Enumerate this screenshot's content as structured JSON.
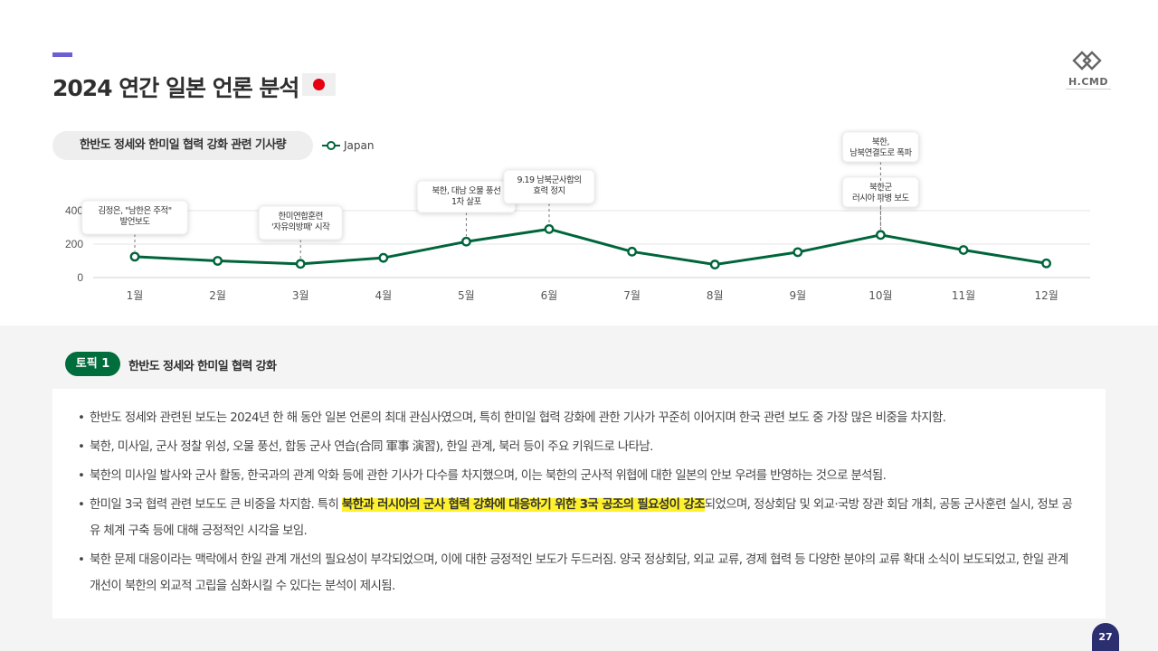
{
  "header": {
    "title": "2024 연간 일본 언론 분석",
    "flag_icon": "japan-flag-icon",
    "logo_text": "H.CMD"
  },
  "chart_section": {
    "title": "한반도 정세와 한미일 협력 강화 관련 기사량"
  },
  "chart_data": {
    "type": "line",
    "categories": [
      "1월",
      "2월",
      "3월",
      "4월",
      "5월",
      "6월",
      "7월",
      "8월",
      "9월",
      "10월",
      "11월",
      "12월"
    ],
    "series": [
      {
        "name": "Japan",
        "color": "#00653a",
        "values": [
          125,
          100,
          82,
          118,
          215,
          290,
          155,
          78,
          152,
          255,
          165,
          85
        ]
      }
    ],
    "yticks": [
      0,
      200,
      400
    ],
    "ylim": [
      0,
      400
    ],
    "grid": true,
    "legend": "top-left",
    "annotations": [
      {
        "month_index": 0,
        "lines": [
          "김정은, \"남한은 주적\"",
          "발언보도"
        ]
      },
      {
        "month_index": 2,
        "lines": [
          "한미연합훈련",
          "'자유의방패' 시작"
        ]
      },
      {
        "month_index": 4,
        "lines": [
          "북한, 대남 오물 풍선",
          "1차 살포"
        ]
      },
      {
        "month_index": 5,
        "lines": [
          "9.19 남북군사합의",
          "효력 정지"
        ]
      },
      {
        "month_index": 9,
        "lines": [
          "북한군",
          "러시아 파병 보도"
        ]
      },
      {
        "month_index": 9,
        "lines": [
          "북한,",
          "남북연결도로 폭파"
        ]
      }
    ]
  },
  "topic": {
    "badge": "토픽 1",
    "title": "한반도 정세와 한미일 협력 강화"
  },
  "bullets": {
    "b1": "한반도 정세와 관련된 보도는 2024년 한 해 동안 일본 언론의 최대 관심사였으며, 특히 한미일 협력 강화에 관한 기사가 꾸준히 이어지며 한국 관련 보도 중 가장 많은 비중을 차지함.",
    "b2": "북한, 미사일, 군사 정찰 위성, 오물 풍선, 합동 군사 연습(合同 軍事 演習), 한일 관계, 북러 등이 주요 키워드로 나타남.",
    "b3": "북한의 미사일 발사와 군사 활동, 한국과의 관계 악화 등에 관한 기사가 다수를 차지했으며, 이는 북한의 군사적 위협에 대한 일본의 안보 우려를 반영하는 것으로 분석됨.",
    "b4_pre": "한미일 3국 협력 관련 보도도 큰 비중을 차지함. 특히 ",
    "b4_highlight": "북한과 러시아의 군사 협력 강화에 대응하기 위한 3국 공조의 필요성이 강조",
    "b4_post": "되었으며, 정상회담 및 외교·국방 장관 회담 개최, 공동 군사훈련 실시, 정보 공유 체계 구축 등에 대해 긍정적인 시각을 보임.",
    "b5": "북한 문제 대응이라는 맥락에서 한일 관계 개선의 필요성이 부각되었으며, 이에 대한 긍정적인 보도가 두드러짐. 양국 정상회담, 외교 교류, 경제 협력 등 다양한 분야의 교류 확대 소식이 보도되었고, 한일 관계 개선이 북한의 외교적 고립을 심화시킬 수 있다는 분석이 제시됨."
  },
  "page_number": "27"
}
